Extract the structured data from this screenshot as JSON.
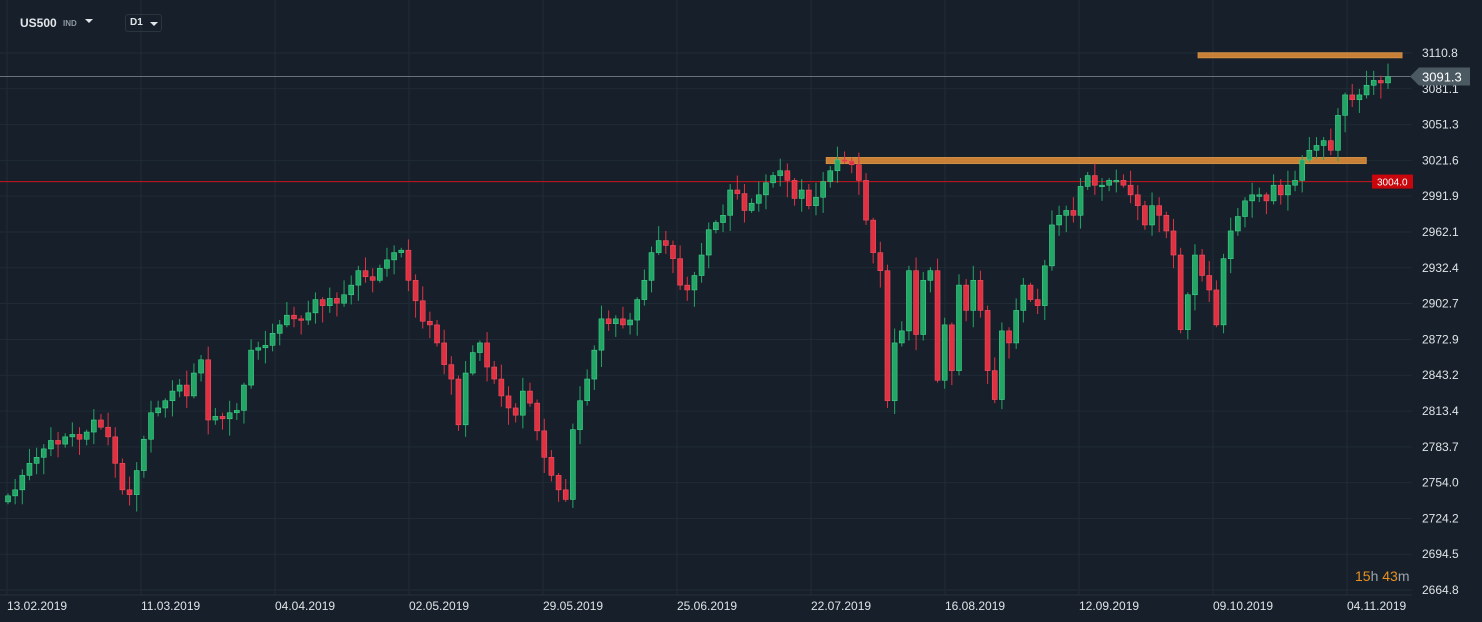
{
  "header": {
    "symbol": "US500",
    "symbol_type": "IND",
    "timeframe": "D1"
  },
  "countdown": {
    "hours": "15",
    "h_unit": "h",
    "minutes": "43",
    "m_unit": "m"
  },
  "colors": {
    "background": "#17202a",
    "up": "#22a565",
    "down": "#e03143",
    "grid": "#202b35",
    "zone": "#e8913a",
    "price_line": "#8a96a0",
    "level_line": "#c8161d"
  },
  "chart_data": {
    "type": "candlestick",
    "title": "US500 D1",
    "x_tick_labels": [
      "13.02.2019",
      "11.03.2019",
      "04.04.2019",
      "02.05.2019",
      "29.05.2019",
      "25.06.2019",
      "22.07.2019",
      "16.08.2019",
      "12.09.2019",
      "09.10.2019",
      "04.11.2019"
    ],
    "y_tick_labels": [
      "3110.8",
      "3081.1",
      "3051.3",
      "3021.6",
      "2991.9",
      "2962.1",
      "2932.4",
      "2902.7",
      "2872.9",
      "2843.2",
      "2813.4",
      "2783.7",
      "2754.0",
      "2724.2",
      "2694.5",
      "2664.8"
    ],
    "ylim": [
      2664.8,
      3110.8
    ],
    "current_price": {
      "value": 3091.3,
      "label": "3091.3"
    },
    "level_line": {
      "value": 3004.0,
      "label": "3004.0"
    },
    "zones": [
      {
        "from_index": 167,
        "to_index": 193,
        "low": 3107,
        "high": 3111
      },
      {
        "from_index": 115,
        "to_index": 188,
        "low": 3019,
        "high": 3024
      }
    ],
    "closes": [
      2743,
      2748,
      2760,
      2770,
      2775,
      2782,
      2789,
      2786,
      2792,
      2794,
      2790,
      2796,
      2806,
      2800,
      2792,
      2770,
      2748,
      2744,
      2764,
      2790,
      2812,
      2816,
      2822,
      2830,
      2835,
      2826,
      2845,
      2856,
      2806,
      2809,
      2807,
      2812,
      2814,
      2835,
      2864,
      2866,
      2868,
      2878,
      2885,
      2893,
      2890,
      2889,
      2895,
      2906,
      2901,
      2907,
      2903,
      2910,
      2918,
      2930,
      2925,
      2922,
      2932,
      2939,
      2945,
      2947,
      2922,
      2905,
      2888,
      2885,
      2870,
      2852,
      2840,
      2802,
      2845,
      2862,
      2870,
      2850,
      2840,
      2826,
      2816,
      2810,
      2830,
      2820,
      2797,
      2775,
      2760,
      2748,
      2740,
      2798,
      2822,
      2840,
      2864,
      2890,
      2886,
      2890,
      2885,
      2889,
      2906,
      2922,
      2945,
      2955,
      2951,
      2940,
      2918,
      2914,
      2926,
      2943,
      2964,
      2970,
      2976,
      2997,
      2994,
      2980,
      2986,
      2993,
      3003,
      3009,
      3013,
      3005,
      2990,
      2997,
      2984,
      2991,
      3004,
      3013,
      3022,
      3021,
      3018,
      3005,
      2972,
      2945,
      2930,
      2822,
      2870,
      2880,
      2930,
      2877,
      2922,
      2930,
      2839,
      2885,
      2847,
      2918,
      2897,
      2922,
      2897,
      2847,
      2823,
      2880,
      2870,
      2897,
      2918,
      2906,
      2901,
      2934,
      2968,
      2976,
      2980,
      2976,
      3000,
      3009,
      3001,
      3001,
      3005,
      3005,
      3001,
      2993,
      2984,
      2968,
      2984,
      2976,
      2963,
      2943,
      2881,
      2910,
      2943,
      2926,
      2914,
      2885,
      2940,
      2963,
      2975,
      2988,
      2993,
      2993,
      2988,
      3001,
      2993,
      3001,
      3005,
      3022,
      3030,
      3034,
      3038,
      3030,
      3059,
      3076,
      3072,
      3076,
      3084,
      3088,
      3086,
      3091
    ]
  }
}
